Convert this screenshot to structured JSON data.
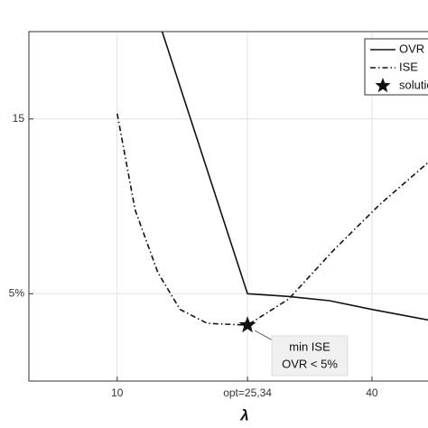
{
  "chart_data": {
    "type": "line",
    "x_label": "λ",
    "xlim": [
      -0.4,
      46.6
    ],
    "ylim": [
      0,
      20
    ],
    "xticks": [
      10,
      {
        "value": 25.34,
        "label": "opt=25,34"
      },
      40
    ],
    "yticks": [
      {
        "value": 5,
        "label": "5%"
      },
      15
    ],
    "grid": true,
    "legend": "upper right",
    "series": [
      {
        "name": "OVR",
        "color": "#111111",
        "style": "solid",
        "x": [
          15.3,
          25.34,
          30,
          35,
          40,
          46.6
        ],
        "values": [
          20,
          5.0,
          4.85,
          4.6,
          4.1,
          3.5
        ]
      },
      {
        "name": "ISE",
        "color": "#111111",
        "style": "dash-dot",
        "x": [
          10,
          12.1,
          14.8,
          17.4,
          20.6,
          25.34,
          30.2,
          35.5,
          40.9,
          46.6
        ],
        "values": [
          15.3,
          9.8,
          6.2,
          4.1,
          3.3,
          3.2,
          4.7,
          7.5,
          10.1,
          12.5
        ]
      },
      {
        "name": "solution",
        "color": "#111111",
        "style": "star",
        "x": [
          25.34
        ],
        "values": [
          3.2
        ]
      }
    ],
    "annotation": [
      "min ISE",
      "OVR < 5%"
    ]
  }
}
